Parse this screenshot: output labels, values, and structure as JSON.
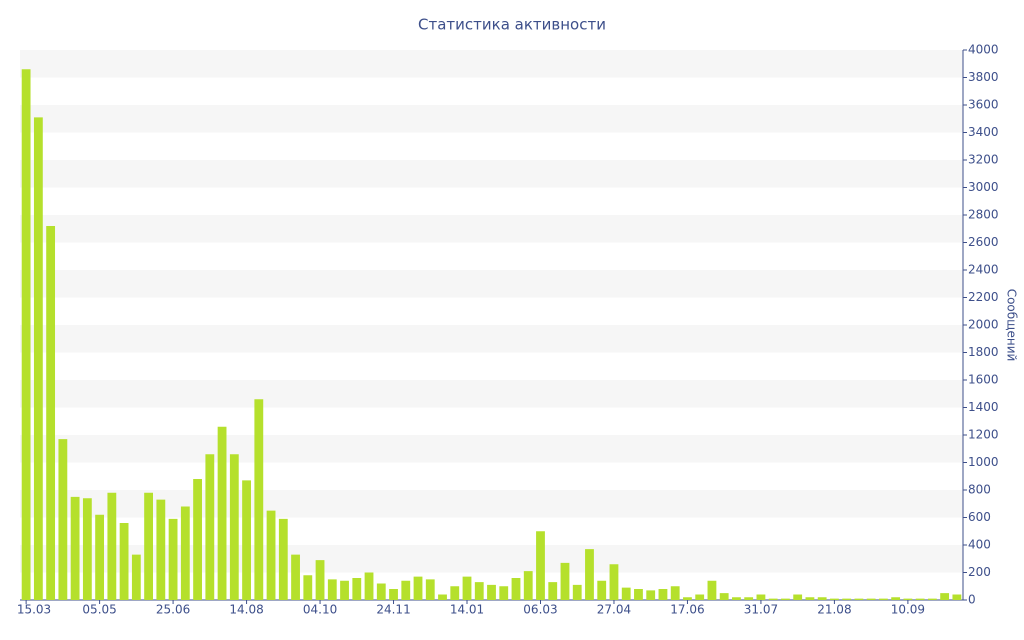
{
  "chart_data": {
    "type": "bar",
    "title": "Статистика активности",
    "y_axis_label": "Сообщений",
    "y_axis_side": "right",
    "grid": true,
    "color": "#b5e02c",
    "categories": [
      "15.03",
      null,
      null,
      null,
      null,
      null,
      "05.05",
      null,
      null,
      null,
      null,
      null,
      "25.06",
      null,
      null,
      null,
      null,
      null,
      "14.08",
      null,
      null,
      null,
      null,
      null,
      "04.10",
      null,
      null,
      null,
      null,
      null,
      "24.11",
      null,
      null,
      null,
      null,
      null,
      "14.01",
      null,
      null,
      null,
      null,
      null,
      "06.03",
      null,
      null,
      null,
      null,
      null,
      "27.04",
      null,
      null,
      null,
      null,
      null,
      "17.06",
      null,
      null,
      null,
      null,
      null,
      "31.07",
      null,
      null,
      null,
      null,
      null,
      "21.08",
      null,
      null,
      null,
      null,
      null,
      "10.09",
      null,
      null,
      null,
      null
    ],
    "values": [
      3860,
      3510,
      2720,
      1170,
      750,
      740,
      620,
      780,
      560,
      330,
      780,
      730,
      590,
      680,
      880,
      1060,
      1260,
      1060,
      870,
      1460,
      650,
      590,
      330,
      180,
      290,
      150,
      140,
      160,
      200,
      120,
      80,
      140,
      170,
      150,
      40,
      100,
      170,
      130,
      110,
      100,
      160,
      210,
      500,
      130,
      270,
      110,
      370,
      140,
      260,
      90,
      80,
      70,
      80,
      100,
      20,
      40,
      140,
      50,
      20,
      20,
      40,
      10,
      10,
      40,
      20,
      20,
      10,
      10,
      10,
      10,
      10,
      20,
      10,
      10,
      10,
      50,
      40
    ],
    "ylim": [
      0,
      4000
    ],
    "yticks": [
      0,
      200,
      400,
      600,
      800,
      1000,
      1200,
      1400,
      1600,
      1800,
      2000,
      2200,
      2400,
      2600,
      2800,
      3000,
      3200,
      3400,
      3600,
      3800,
      4000
    ]
  }
}
